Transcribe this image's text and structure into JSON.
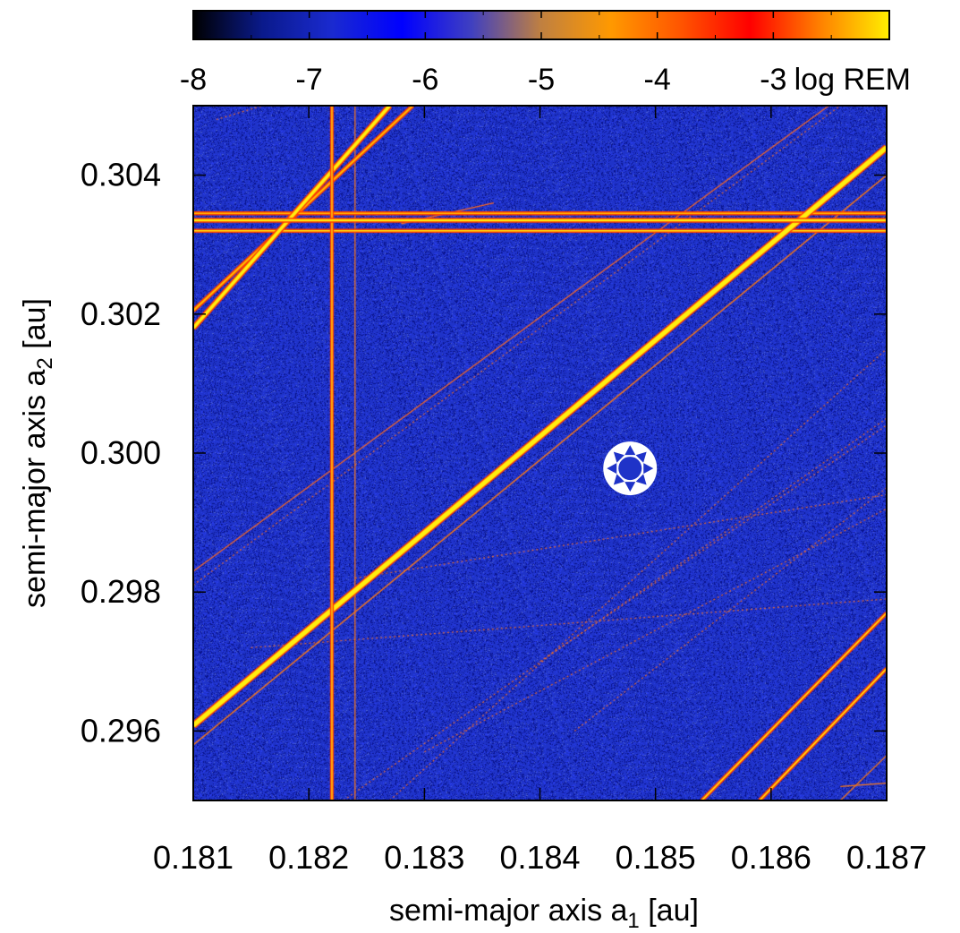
{
  "chart_data": {
    "type": "heatmap",
    "title": "",
    "xlabel": "semi-major axis a",
    "xlabel_sub": "1",
    "xlabel_unit": " [au]",
    "ylabel": "semi-major axis a",
    "ylabel_sub": "2",
    "ylabel_unit": " [au]",
    "xlim": [
      0.181,
      0.187
    ],
    "ylim": [
      0.295,
      0.305
    ],
    "x_ticks": [
      0.181,
      0.182,
      0.183,
      0.184,
      0.185,
      0.186,
      0.187
    ],
    "x_tick_labels": [
      "0.181",
      "0.182",
      "0.183",
      "0.184",
      "0.185",
      "0.186",
      "0.187"
    ],
    "y_ticks": [
      0.296,
      0.298,
      0.3,
      0.302,
      0.304
    ],
    "y_tick_labels": [
      "0.296",
      "0.298",
      "0.300",
      "0.302",
      "0.304"
    ],
    "colorbar": {
      "label": "log REM",
      "range": [
        -8,
        -2
      ],
      "ticks": [
        -8,
        -7,
        -6,
        -5,
        -4,
        -3
      ],
      "tick_labels": [
        "-8",
        "-7",
        "-6",
        "-5",
        "-4",
        "-3"
      ],
      "colors": [
        "#000000",
        "#0a1a8c",
        "#1a2ad0",
        "#0000ff",
        "#4040c0",
        "#c08040",
        "#ff9900",
        "#ff5500",
        "#ff0000",
        "#ff8000",
        "#ffee00"
      ]
    },
    "background_value": -6.8,
    "background_color": "#1f33c8",
    "marker": {
      "label": "nominal system",
      "x": 0.18478,
      "y": 0.29978,
      "symbol": "star-in-circle"
    },
    "features": [
      {
        "kind": "line",
        "x1": 0.181,
        "y1": 0.3018,
        "x2": 0.1827,
        "y2": 0.305,
        "value": -2.3,
        "width": 3e-05
      },
      {
        "kind": "line",
        "x1": 0.181,
        "y1": 0.30205,
        "x2": 0.1829,
        "y2": 0.305,
        "value": -2.6,
        "width": 1.5e-05
      },
      {
        "kind": "line",
        "x1": 0.181,
        "y1": 0.29608,
        "x2": 0.187,
        "y2": 0.3044,
        "value": -2.3,
        "width": 4e-05
      },
      {
        "kind": "line",
        "x1": 0.181,
        "y1": 0.2958,
        "x2": 0.187,
        "y2": 0.304,
        "value": -3.5,
        "width": 1e-05
      },
      {
        "kind": "line",
        "x1": 0.181,
        "y1": 0.2983,
        "x2": 0.1865,
        "y2": 0.305,
        "value": -4.0,
        "width": 8e-06
      },
      {
        "kind": "line",
        "x1": 0.181,
        "y1": 0.2981,
        "x2": 0.1866,
        "y2": 0.305,
        "value": -4.2,
        "width": 6e-06
      },
      {
        "kind": "line",
        "x1": 0.181,
        "y1": 0.30335,
        "x2": 0.187,
        "y2": 0.30335,
        "value": -2.2,
        "width": 2e-05
      },
      {
        "kind": "line",
        "x1": 0.181,
        "y1": 0.3032,
        "x2": 0.187,
        "y2": 0.3032,
        "value": -2.4,
        "width": 1.2e-05
      },
      {
        "kind": "line",
        "x1": 0.181,
        "y1": 0.30345,
        "x2": 0.187,
        "y2": 0.30345,
        "value": -2.6,
        "width": 1.2e-05
      },
      {
        "kind": "line",
        "x1": 0.1822,
        "y1": 0.295,
        "x2": 0.1822,
        "y2": 0.305,
        "value": -2.3,
        "width": 8e-06
      },
      {
        "kind": "line",
        "x1": 0.1824,
        "y1": 0.295,
        "x2": 0.1824,
        "y2": 0.305,
        "value": -3.5,
        "width": 4e-06
      },
      {
        "kind": "line",
        "x1": 0.1854,
        "y1": 0.295,
        "x2": 0.187,
        "y2": 0.2977,
        "value": -2.3,
        "width": 1.2e-05
      },
      {
        "kind": "line",
        "x1": 0.1859,
        "y1": 0.295,
        "x2": 0.187,
        "y2": 0.2969,
        "value": -2.3,
        "width": 1.2e-05
      },
      {
        "kind": "line",
        "x1": 0.1866,
        "y1": 0.295,
        "x2": 0.187,
        "y2": 0.29565,
        "value": -3.0,
        "width": 8e-06
      },
      {
        "kind": "line",
        "x1": 0.1827,
        "y1": 0.295,
        "x2": 0.187,
        "y2": 0.3015,
        "value": -4.3,
        "width": 4e-06
      },
      {
        "kind": "line",
        "x1": 0.1823,
        "y1": 0.295,
        "x2": 0.187,
        "y2": 0.3005,
        "value": -4.3,
        "width": 4e-06
      },
      {
        "kind": "line",
        "x1": 0.184,
        "y1": 0.297,
        "x2": 0.187,
        "y2": 0.3004,
        "value": -4.3,
        "width": 3e-06
      },
      {
        "kind": "line",
        "x1": 0.1843,
        "y1": 0.296,
        "x2": 0.187,
        "y2": 0.2995,
        "value": -4.3,
        "width": 3e-06
      },
      {
        "kind": "line",
        "x1": 0.1824,
        "y1": 0.2982,
        "x2": 0.187,
        "y2": 0.2994,
        "value": -4.3,
        "width": 3e-06
      },
      {
        "kind": "line",
        "x1": 0.1815,
        "y1": 0.2972,
        "x2": 0.187,
        "y2": 0.2979,
        "value": -4.5,
        "width": 2e-06
      },
      {
        "kind": "line",
        "x1": 0.183,
        "y1": 0.2957,
        "x2": 0.187,
        "y2": 0.2992,
        "value": -4.5,
        "width": 2e-06
      },
      {
        "kind": "line",
        "x1": 0.1812,
        "y1": 0.3048,
        "x2": 0.1816,
        "y2": 0.305,
        "value": -4.5,
        "width": 2e-06
      },
      {
        "kind": "line",
        "x1": 0.1828,
        "y1": 0.3033,
        "x2": 0.1836,
        "y2": 0.3036,
        "value": -4.0,
        "width": 4e-06
      },
      {
        "kind": "line",
        "x1": 0.1866,
        "y1": 0.2952,
        "x2": 0.187,
        "y2": 0.29525,
        "value": -3.0,
        "width": 1e-05
      }
    ]
  }
}
